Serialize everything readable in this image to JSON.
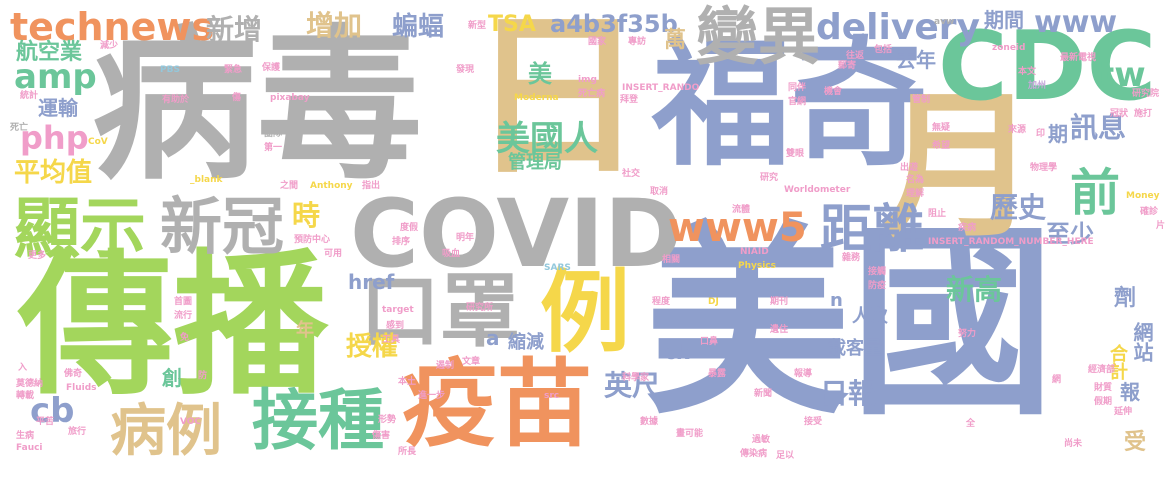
{
  "palette": {
    "blue": "#8e9fcc",
    "gray": "#b0b0b0",
    "green": "#a3d65c",
    "teal": "#6bc69a",
    "tan": "#e0c38c",
    "orange": "#f0935e",
    "pink": "#f09dc9",
    "yellow": "#f5d74a",
    "lightblue": "#93c8dc",
    "lilac": "#c7a7da"
  },
  "words": [
    {
      "text": "美國",
      "weight": 100,
      "color": "blue"
    },
    {
      "text": "病毒",
      "weight": 98,
      "color": "gray"
    },
    {
      "text": "傳播",
      "weight": 96,
      "color": "green"
    },
    {
      "text": "日",
      "weight": 90,
      "color": "tan"
    },
    {
      "text": "福奇",
      "weight": 86,
      "color": "blue"
    },
    {
      "text": "月",
      "weight": 80,
      "color": "tan"
    },
    {
      "text": "CDC",
      "weight": 78,
      "color": "teal"
    },
    {
      "text": "COVID",
      "weight": 76,
      "color": "gray"
    },
    {
      "text": "疫苗",
      "weight": 72,
      "color": "orange"
    },
    {
      "text": "口罩",
      "weight": 64,
      "color": "gray"
    },
    {
      "text": "例",
      "weight": 60,
      "color": "yellow"
    },
    {
      "text": "變異",
      "weight": 58,
      "color": "gray"
    },
    {
      "text": "顯示",
      "weight": 54,
      "color": "green"
    },
    {
      "text": "新冠",
      "weight": 54,
      "color": "gray"
    },
    {
      "text": "接種",
      "weight": 50,
      "color": "teal"
    },
    {
      "text": "病例",
      "weight": 48,
      "color": "tan"
    },
    {
      "text": "距離",
      "weight": 46,
      "color": "blue"
    },
    {
      "text": "前",
      "weight": 44,
      "color": "teal"
    },
    {
      "text": "technews",
      "weight": 40,
      "color": "orange"
    },
    {
      "text": "www5",
      "weight": 38,
      "color": "orange"
    },
    {
      "text": "delivery",
      "weight": 36,
      "color": "blue"
    },
    {
      "text": "美國人",
      "weight": 34,
      "color": "teal"
    },
    {
      "text": "amp",
      "weight": 32,
      "color": "teal"
    },
    {
      "text": "php",
      "weight": 32,
      "color": "pink"
    },
    {
      "text": "cb",
      "weight": 30,
      "color": "blue"
    },
    {
      "text": "tw",
      "weight": 30,
      "color": "teal"
    },
    {
      "text": "www",
      "weight": 30,
      "color": "blue"
    },
    {
      "text": "新增",
      "weight": 28,
      "color": "gray"
    },
    {
      "text": "增加",
      "weight": 28,
      "color": "tan"
    },
    {
      "text": "蝙蝠",
      "weight": 26,
      "color": "blue"
    },
    {
      "text": "a4b3f35b",
      "weight": 24,
      "color": "blue"
    },
    {
      "text": "TSA",
      "weight": 24,
      "color": "yellow"
    },
    {
      "text": "航空業",
      "weight": 24,
      "color": "teal"
    },
    {
      "text": "平均值",
      "weight": 26,
      "color": "yellow"
    },
    {
      "text": "時",
      "weight": 28,
      "color": "yellow"
    },
    {
      "text": "歷史",
      "weight": 26,
      "color": "blue"
    },
    {
      "text": "訊息",
      "weight": 26,
      "color": "blue"
    },
    {
      "text": "新高",
      "weight": 26,
      "color": "teal"
    },
    {
      "text": "至少",
      "weight": 24,
      "color": "blue"
    },
    {
      "text": "英尺",
      "weight": 26,
      "color": "blue"
    },
    {
      "text": "日報",
      "weight": 26,
      "color": "blue"
    },
    {
      "text": "授權",
      "weight": 26,
      "color": "yellow"
    },
    {
      "text": "管理局",
      "weight": 18,
      "color": "teal"
    },
    {
      "text": "運輸",
      "weight": 20,
      "color": "blue"
    },
    {
      "text": "期間",
      "weight": 20,
      "color": "blue"
    },
    {
      "text": "去年",
      "weight": 20,
      "color": "blue"
    },
    {
      "text": "萬",
      "weight": 22,
      "color": "tan"
    },
    {
      "text": "美",
      "weight": 22,
      "color": "teal"
    },
    {
      "text": "期",
      "weight": 20,
      "color": "blue"
    },
    {
      "text": "劑",
      "weight": 22,
      "color": "blue"
    },
    {
      "text": "網站",
      "weight": 20,
      "color": "blue"
    },
    {
      "text": "合計",
      "weight": 18,
      "color": "yellow"
    },
    {
      "text": "報",
      "weight": 20,
      "color": "blue"
    },
    {
      "text": "受",
      "weight": 22,
      "color": "tan"
    },
    {
      "text": "載客量",
      "weight": 18,
      "color": "blue"
    },
    {
      "text": "人次",
      "weight": 18,
      "color": "blue"
    },
    {
      "text": "ck",
      "weight": 18,
      "color": "blue"
    },
    {
      "text": "縮減",
      "weight": 18,
      "color": "blue"
    },
    {
      "text": "href",
      "weight": 20,
      "color": "blue"
    },
    {
      "text": "a",
      "weight": 20,
      "color": "blue"
    },
    {
      "text": "n",
      "weight": 18,
      "color": "blue"
    },
    {
      "text": "年",
      "weight": 18,
      "color": "tan"
    },
    {
      "text": "創",
      "weight": 20,
      "color": "teal"
    },
    {
      "text": "PBS",
      "weight": 9,
      "color": "lightblue"
    },
    {
      "text": "緊急",
      "weight": 9,
      "color": "pink"
    },
    {
      "text": "保護",
      "weight": 9,
      "color": "pink"
    },
    {
      "text": "新型",
      "weight": 9,
      "color": "pink"
    },
    {
      "text": "國家",
      "weight": 9,
      "color": "pink"
    },
    {
      "text": "專訪",
      "weight": 9,
      "color": "pink"
    },
    {
      "text": "avw",
      "weight": 9,
      "color": "gray"
    },
    {
      "text": "zoneid",
      "weight": 9,
      "color": "pink"
    },
    {
      "text": "最新電視",
      "weight": 9,
      "color": "pink"
    },
    {
      "text": "本文",
      "weight": 9,
      "color": "pink"
    },
    {
      "text": "加州",
      "weight": 9,
      "color": "lilac"
    },
    {
      "text": "減少",
      "weight": 9,
      "color": "pink"
    },
    {
      "text": "發現",
      "weight": 9,
      "color": "pink"
    },
    {
      "text": "img",
      "weight": 9,
      "color": "pink"
    },
    {
      "text": "INSERT_RANDO",
      "weight": 9,
      "color": "pink"
    },
    {
      "text": "Moderna",
      "weight": 9,
      "color": "yellow"
    },
    {
      "text": "死亡病",
      "weight": 9,
      "color": "pink"
    },
    {
      "text": "拜登",
      "weight": 9,
      "color": "pink"
    },
    {
      "text": "同伴",
      "weight": 9,
      "color": "pink"
    },
    {
      "text": "官網",
      "weight": 9,
      "color": "pink"
    },
    {
      "text": "機會",
      "weight": 9,
      "color": "pink"
    },
    {
      "text": "管制",
      "weight": 9,
      "color": "pink"
    },
    {
      "text": "往返",
      "weight": 9,
      "color": "pink"
    },
    {
      "text": "包括",
      "weight": 9,
      "color": "pink"
    },
    {
      "text": "郵寄",
      "weight": 9,
      "color": "pink"
    },
    {
      "text": "統計",
      "weight": 9,
      "color": "pink"
    },
    {
      "text": "有助於",
      "weight": 9,
      "color": "pink"
    },
    {
      "text": "傷",
      "weight": 9,
      "color": "pink"
    },
    {
      "text": "pixabay",
      "weight": 9,
      "color": "pink"
    },
    {
      "text": "死亡",
      "weight": 9,
      "color": "gray"
    },
    {
      "text": "CoV",
      "weight": 9,
      "color": "yellow"
    },
    {
      "text": "團隊",
      "weight": 9,
      "color": "gray"
    },
    {
      "text": "第一",
      "weight": 9,
      "color": "pink"
    },
    {
      "text": "美國",
      "weight": 9,
      "color": "gray"
    },
    {
      "text": "_blank",
      "weight": 9,
      "color": "yellow"
    },
    {
      "text": "之間",
      "weight": 9,
      "color": "pink"
    },
    {
      "text": "Anthony",
      "weight": 9,
      "color": "yellow"
    },
    {
      "text": "指出",
      "weight": 9,
      "color": "pink"
    },
    {
      "text": "社交",
      "weight": 9,
      "color": "pink"
    },
    {
      "text": "取消",
      "weight": 9,
      "color": "pink"
    },
    {
      "text": "Worldometer",
      "weight": 9,
      "color": "pink"
    },
    {
      "text": "研究",
      "weight": 9,
      "color": "pink"
    },
    {
      "text": "雙眼",
      "weight": 9,
      "color": "pink"
    },
    {
      "text": "出遊",
      "weight": 9,
      "color": "pink"
    },
    {
      "text": "名為",
      "weight": 9,
      "color": "pink"
    },
    {
      "text": "理解",
      "weight": 9,
      "color": "pink"
    },
    {
      "text": "物理學",
      "weight": 9,
      "color": "pink"
    },
    {
      "text": "希望",
      "weight": 9,
      "color": "pink"
    },
    {
      "text": "無疑",
      "weight": 9,
      "color": "pink"
    },
    {
      "text": "來源",
      "weight": 9,
      "color": "pink"
    },
    {
      "text": "印",
      "weight": 9,
      "color": "pink"
    },
    {
      "text": "施打",
      "weight": 9,
      "color": "pink"
    },
    {
      "text": "冠狀",
      "weight": 9,
      "color": "pink"
    },
    {
      "text": "研究院",
      "weight": 9,
      "color": "pink"
    },
    {
      "text": "Money",
      "weight": 9,
      "color": "yellow"
    },
    {
      "text": "確診",
      "weight": 9,
      "color": "pink"
    },
    {
      "text": "片",
      "weight": 9,
      "color": "pink"
    },
    {
      "text": "預防中心",
      "weight": 9,
      "color": "pink"
    },
    {
      "text": "度假",
      "weight": 9,
      "color": "pink"
    },
    {
      "text": "排序",
      "weight": 9,
      "color": "pink"
    },
    {
      "text": "明年",
      "weight": 9,
      "color": "pink"
    },
    {
      "text": "可用",
      "weight": 9,
      "color": "pink"
    },
    {
      "text": "吸血",
      "weight": 9,
      "color": "pink"
    },
    {
      "text": "流體",
      "weight": 9,
      "color": "pink"
    },
    {
      "text": "NIAID",
      "weight": 9,
      "color": "pink"
    },
    {
      "text": "Physics",
      "weight": 9,
      "color": "yellow"
    },
    {
      "text": "INSERT_RANDOM_NUMBER_HERE",
      "weight": 9,
      "color": "pink"
    },
    {
      "text": "阻止",
      "weight": 9,
      "color": "pink"
    },
    {
      "text": "疾病",
      "weight": 9,
      "color": "pink"
    },
    {
      "text": "更多",
      "weight": 9,
      "color": "pink"
    },
    {
      "text": "SARS",
      "weight": 9,
      "color": "lightblue"
    },
    {
      "text": "相關",
      "weight": 9,
      "color": "pink"
    },
    {
      "text": "雜務",
      "weight": 9,
      "color": "pink"
    },
    {
      "text": "接觸",
      "weight": 9,
      "color": "pink"
    },
    {
      "text": "防疫",
      "weight": 9,
      "color": "pink"
    },
    {
      "text": "target",
      "weight": 9,
      "color": "pink"
    },
    {
      "text": "首圖",
      "weight": 9,
      "color": "pink"
    },
    {
      "text": "流行",
      "weight": 9,
      "color": "pink"
    },
    {
      "text": "感到",
      "weight": 9,
      "color": "pink"
    },
    {
      "text": "工具",
      "weight": 9,
      "color": "pink"
    },
    {
      "text": "研究所",
      "weight": 9,
      "color": "pink"
    },
    {
      "text": "程度",
      "weight": 9,
      "color": "pink"
    },
    {
      "text": "DJ",
      "weight": 9,
      "color": "yellow"
    },
    {
      "text": "期刊",
      "weight": 9,
      "color": "pink"
    },
    {
      "text": "遺住",
      "weight": 9,
      "color": "pink"
    },
    {
      "text": "口鼻",
      "weight": 9,
      "color": "pink"
    },
    {
      "text": "努力",
      "weight": 9,
      "color": "pink"
    },
    {
      "text": "免",
      "weight": 9,
      "color": "pink"
    },
    {
      "text": "防",
      "weight": 9,
      "color": "pink"
    },
    {
      "text": "遏制",
      "weight": 9,
      "color": "pink"
    },
    {
      "text": "文章",
      "weight": 9,
      "color": "pink"
    },
    {
      "text": "科學家",
      "weight": 9,
      "color": "pink"
    },
    {
      "text": "暴露",
      "weight": 9,
      "color": "pink"
    },
    {
      "text": "報導",
      "weight": 9,
      "color": "pink"
    },
    {
      "text": "網",
      "weight": 9,
      "color": "pink"
    },
    {
      "text": "經濟部",
      "weight": 9,
      "color": "pink"
    },
    {
      "text": "入",
      "weight": 9,
      "color": "pink"
    },
    {
      "text": "佛奇",
      "weight": 9,
      "color": "pink"
    },
    {
      "text": "本土",
      "weight": 9,
      "color": "pink"
    },
    {
      "text": "進一步",
      "weight": 9,
      "color": "pink"
    },
    {
      "text": "莫德納",
      "weight": 9,
      "color": "pink"
    },
    {
      "text": "轉載",
      "weight": 9,
      "color": "pink"
    },
    {
      "text": "Fluids",
      "weight": 9,
      "color": "pink"
    },
    {
      "text": "src",
      "weight": 9,
      "color": "pink"
    },
    {
      "text": "新聞",
      "weight": 9,
      "color": "pink"
    },
    {
      "text": "財質",
      "weight": 9,
      "color": "pink"
    },
    {
      "text": "假期",
      "weight": 9,
      "color": "pink"
    },
    {
      "text": "延伸",
      "weight": 9,
      "color": "pink"
    },
    {
      "text": "VOC",
      "weight": 9,
      "color": "pink"
    },
    {
      "text": "形勢",
      "weight": 9,
      "color": "pink"
    },
    {
      "text": "傷害",
      "weight": 9,
      "color": "pink"
    },
    {
      "text": "數據",
      "weight": 9,
      "color": "pink"
    },
    {
      "text": "畫可能",
      "weight": 9,
      "color": "pink"
    },
    {
      "text": "接受",
      "weight": 9,
      "color": "pink"
    },
    {
      "text": "平苦",
      "weight": 9,
      "color": "pink"
    },
    {
      "text": "生病",
      "weight": 9,
      "color": "pink"
    },
    {
      "text": "旅行",
      "weight": 9,
      "color": "pink"
    },
    {
      "text": "Fauci",
      "weight": 9,
      "color": "pink"
    },
    {
      "text": "所長",
      "weight": 9,
      "color": "pink"
    },
    {
      "text": "傳染病",
      "weight": 9,
      "color": "pink"
    },
    {
      "text": "過敏",
      "weight": 9,
      "color": "pink"
    },
    {
      "text": "足以",
      "weight": 9,
      "color": "pink"
    },
    {
      "text": "尚未",
      "weight": 9,
      "color": "pink"
    },
    {
      "text": "全",
      "weight": 9,
      "color": "pink"
    }
  ]
}
